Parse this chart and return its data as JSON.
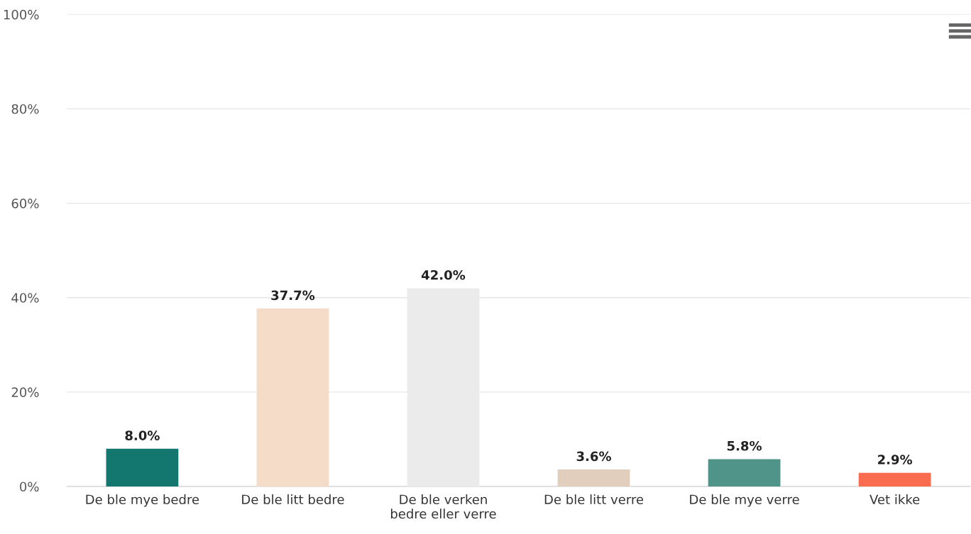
{
  "chart_data": {
    "type": "bar",
    "categories": [
      "De ble mye bedre",
      "De ble litt bedre",
      "De ble verken\nbedre eller verre",
      "De ble litt verre",
      "De ble mye verre",
      "Vet ikke"
    ],
    "values": [
      8.0,
      37.7,
      42.0,
      3.6,
      5.8,
      2.9
    ],
    "colors": [
      "#14776f",
      "#f5dcc9",
      "#ebebeb",
      "#e2cebd",
      "#509489",
      "#f96c50"
    ],
    "value_labels": [
      "8.0%",
      "37.7%",
      "42.0%",
      "3.6%",
      "5.8%",
      "2.9%"
    ],
    "ylim": [
      0,
      100
    ],
    "yticks": [
      {
        "value": 0,
        "label": "0%"
      },
      {
        "value": 20,
        "label": "20%"
      },
      {
        "value": 40,
        "label": "40%"
      },
      {
        "value": 60,
        "label": "60%"
      },
      {
        "value": 80,
        "label": "80%"
      },
      {
        "value": 100,
        "label": "100%"
      }
    ],
    "grid": "y",
    "legend": false
  }
}
